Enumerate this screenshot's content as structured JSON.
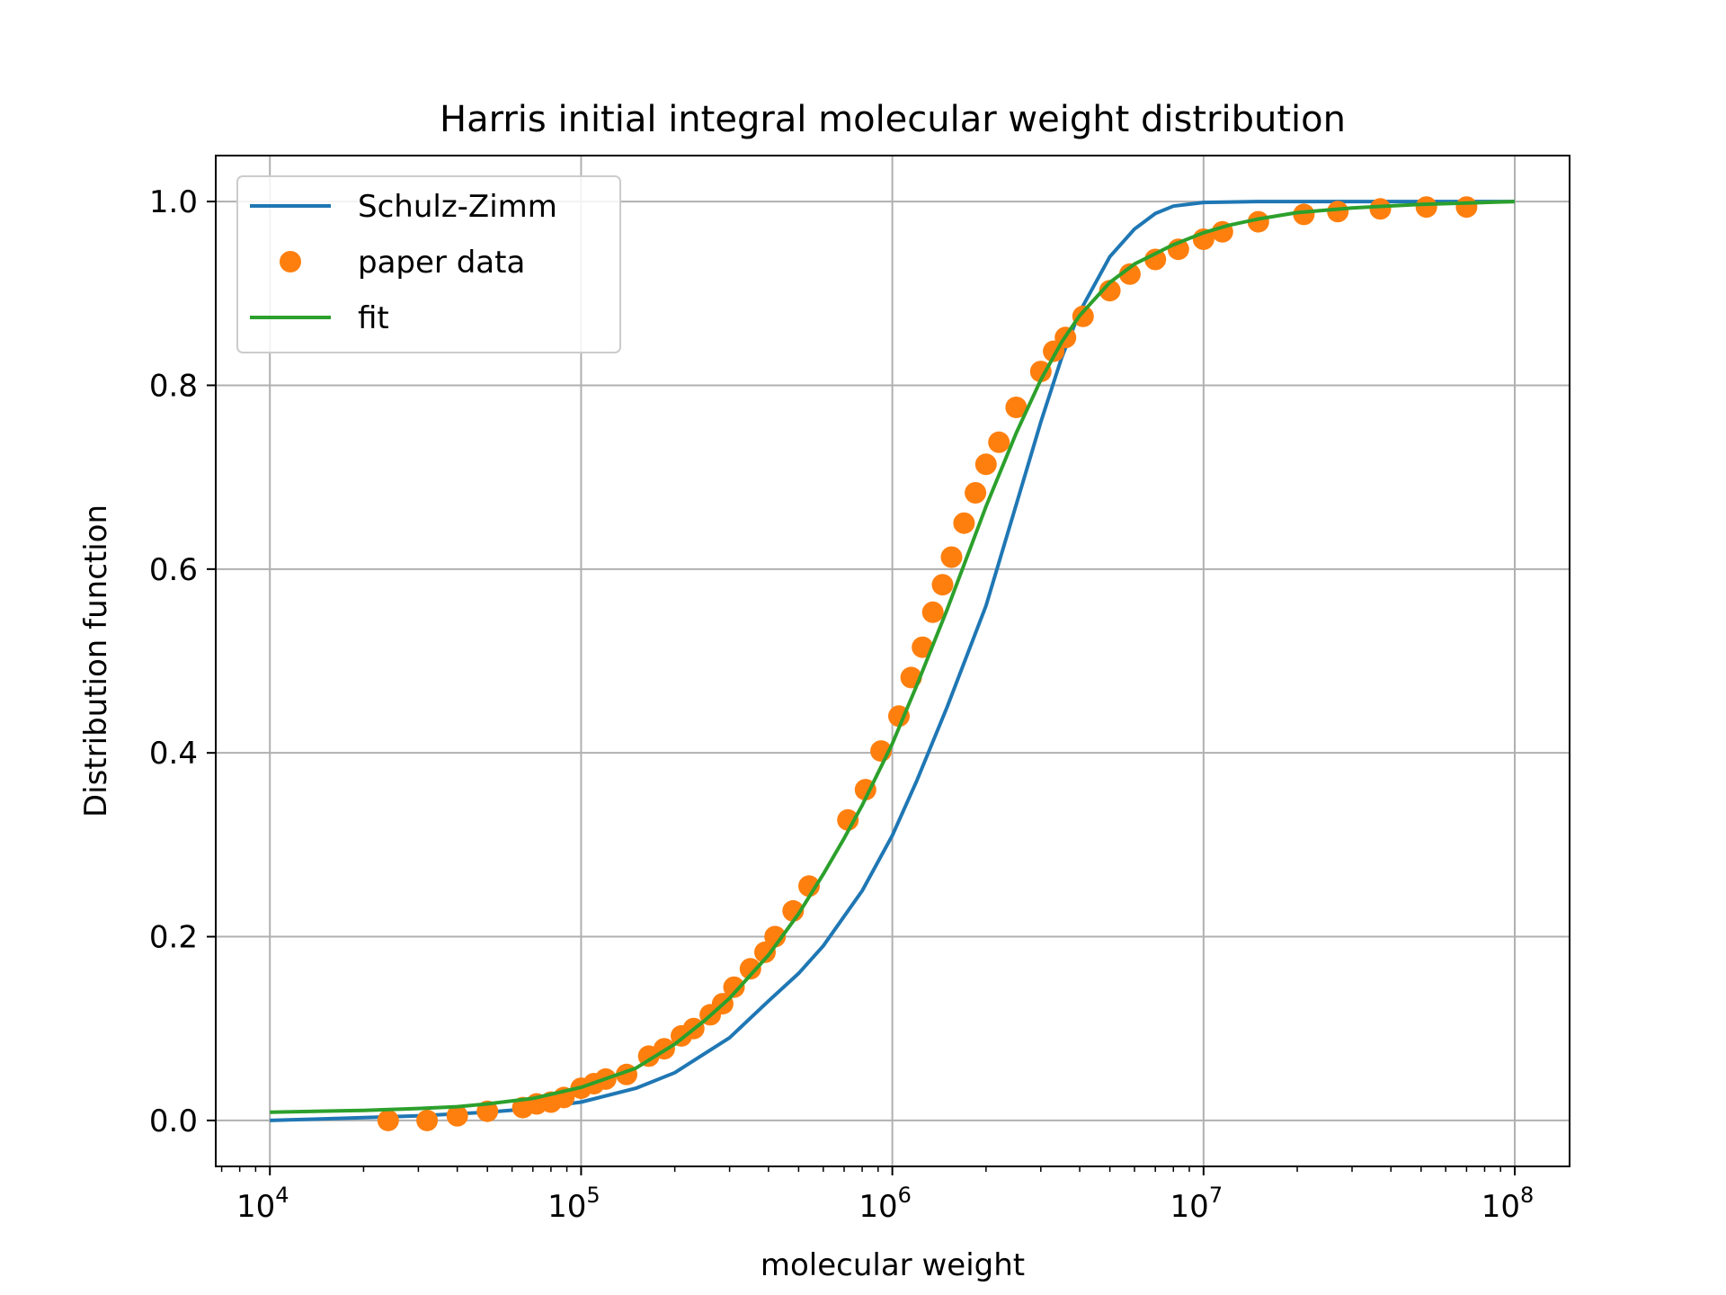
{
  "chart_data": {
    "type": "line",
    "title": "Harris initial integral molecular weight distribution",
    "xlabel": "molecular weight",
    "ylabel": "Distribution function",
    "xscale": "log",
    "xlim": [
      6700,
      150000000
    ],
    "ylim": [
      -0.05,
      1.05
    ],
    "xticks": [
      {
        "value": 10000,
        "base": "10",
        "exp": "4"
      },
      {
        "value": 100000,
        "base": "10",
        "exp": "5"
      },
      {
        "value": 1000000,
        "base": "10",
        "exp": "6"
      },
      {
        "value": 10000000,
        "base": "10",
        "exp": "7"
      },
      {
        "value": 100000000,
        "base": "10",
        "exp": "8"
      }
    ],
    "yticks": [
      {
        "value": 0.0,
        "label": "0.0"
      },
      {
        "value": 0.2,
        "label": "0.2"
      },
      {
        "value": 0.4,
        "label": "0.4"
      },
      {
        "value": 0.6,
        "label": "0.6"
      },
      {
        "value": 0.8,
        "label": "0.8"
      },
      {
        "value": 1.0,
        "label": "1.0"
      }
    ],
    "grid": true,
    "legend_position": "top-left",
    "series": [
      {
        "name": "Schulz-Zimm",
        "kind": "line",
        "color": "#1f77b4",
        "x": [
          10000,
          20000,
          30000,
          50000,
          70000,
          100000,
          150000,
          200000,
          300000,
          400000,
          500000,
          600000,
          800000,
          1000000,
          1200000,
          1500000,
          2000000,
          2500000,
          3000000,
          3500000,
          4000000,
          5000000,
          6000000,
          7000000,
          8000000,
          10000000,
          15000000,
          20000000,
          100000000
        ],
        "y": [
          0.0,
          0.003,
          0.005,
          0.009,
          0.013,
          0.02,
          0.035,
          0.052,
          0.09,
          0.13,
          0.16,
          0.19,
          0.25,
          0.31,
          0.37,
          0.45,
          0.56,
          0.67,
          0.76,
          0.83,
          0.88,
          0.94,
          0.97,
          0.987,
          0.995,
          0.999,
          1.0,
          1.0,
          1.0
        ]
      },
      {
        "name": "paper data",
        "kind": "scatter",
        "color": "#ff7f0e",
        "x": [
          24000,
          32000,
          40000,
          50000,
          65000,
          72000,
          80000,
          88000,
          100000,
          110000,
          120000,
          140000,
          165000,
          185000,
          210000,
          230000,
          260000,
          285000,
          310000,
          350000,
          390000,
          420000,
          480000,
          540000,
          720000,
          820000,
          920000,
          1050000,
          1150000,
          1250000,
          1350000,
          1450000,
          1550000,
          1700000,
          1850000,
          2000000,
          2200000,
          2500000,
          3000000,
          3300000,
          3600000,
          4100000,
          5000000,
          5800000,
          7000000,
          8300000,
          10000000,
          11500000,
          15000000,
          21000000,
          27000000,
          37000000,
          52000000,
          70000000
        ],
        "y": [
          0.0,
          0.0,
          0.005,
          0.01,
          0.014,
          0.018,
          0.02,
          0.025,
          0.035,
          0.04,
          0.045,
          0.05,
          0.07,
          0.078,
          0.092,
          0.1,
          0.115,
          0.127,
          0.145,
          0.165,
          0.183,
          0.2,
          0.228,
          0.255,
          0.327,
          0.36,
          0.402,
          0.44,
          0.482,
          0.515,
          0.553,
          0.583,
          0.613,
          0.65,
          0.683,
          0.714,
          0.738,
          0.776,
          0.815,
          0.837,
          0.852,
          0.875,
          0.903,
          0.921,
          0.937,
          0.948,
          0.959,
          0.967,
          0.978,
          0.986,
          0.989,
          0.992,
          0.994,
          0.994
        ]
      },
      {
        "name": "fit",
        "kind": "line",
        "color": "#2ca02c",
        "x": [
          10000,
          20000,
          30000,
          40000,
          50000,
          70000,
          100000,
          150000,
          200000,
          250000,
          300000,
          400000,
          500000,
          600000,
          700000,
          800000,
          1000000,
          1200000,
          1500000,
          2000000,
          2500000,
          3000000,
          3500000,
          4000000,
          5000000,
          6000000,
          8000000,
          10000000,
          12000000,
          15000000,
          20000000,
          30000000,
          50000000,
          100000000
        ],
        "y": [
          0.009,
          0.011,
          0.013,
          0.015,
          0.018,
          0.024,
          0.036,
          0.057,
          0.083,
          0.109,
          0.133,
          0.18,
          0.225,
          0.268,
          0.307,
          0.343,
          0.41,
          0.474,
          0.556,
          0.668,
          0.748,
          0.806,
          0.847,
          0.876,
          0.912,
          0.932,
          0.953,
          0.966,
          0.974,
          0.981,
          0.988,
          0.993,
          0.997,
          1.0
        ]
      }
    ]
  }
}
